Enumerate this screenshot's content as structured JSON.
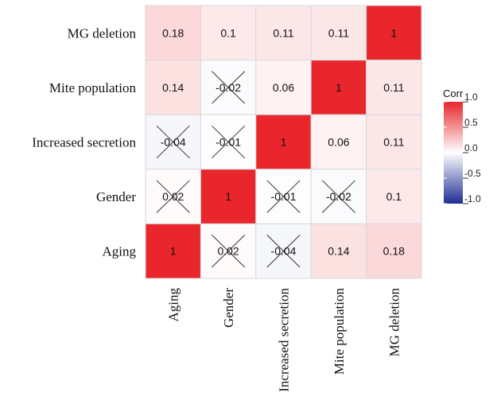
{
  "chart_data": {
    "type": "heatmap",
    "variables_top_to_bottom": [
      "MG deletion",
      "Mite population",
      "Increased secretion",
      "Gender",
      "Aging"
    ],
    "variables_left_to_right": [
      "Aging",
      "Gender",
      "Increased secretion",
      "Mite population",
      "MG deletion"
    ],
    "matrix": [
      [
        0.18,
        0.1,
        0.11,
        0.11,
        1
      ],
      [
        0.14,
        -0.02,
        0.06,
        1,
        0.11
      ],
      [
        -0.04,
        -0.01,
        1,
        0.06,
        0.11
      ],
      [
        0.02,
        1,
        -0.01,
        -0.02,
        0.1
      ],
      [
        1,
        0.02,
        -0.04,
        0.14,
        0.18
      ]
    ],
    "labels": [
      [
        "0.18",
        "0.1",
        "0.11",
        "0.11",
        "1"
      ],
      [
        "0.14",
        "-0.02",
        "0.06",
        "1",
        "0.11"
      ],
      [
        "-0.04",
        "-0.01",
        "1",
        "0.06",
        "0.11"
      ],
      [
        "0.02",
        "1",
        "-0.01",
        "-0.02",
        "0.1"
      ],
      [
        "1",
        "0.02",
        "-0.04",
        "0.14",
        "0.18"
      ]
    ],
    "insignificant": [
      [
        false,
        false,
        false,
        false,
        false
      ],
      [
        false,
        true,
        false,
        false,
        false
      ],
      [
        true,
        true,
        false,
        false,
        false
      ],
      [
        true,
        false,
        true,
        true,
        false
      ],
      [
        false,
        true,
        true,
        false,
        false
      ]
    ],
    "legend": {
      "title": "Corr",
      "ticks": [
        "1.0",
        "0.5",
        "0.0",
        "-0.5",
        "-1.0"
      ],
      "tick_values": [
        1.0,
        0.5,
        0.0,
        -0.5,
        -1.0
      ],
      "range": [
        -1,
        1
      ],
      "placement": "right"
    },
    "colors": {
      "high": "#e8262b",
      "mid": "#ffffff",
      "low": "#1f2e95"
    }
  }
}
